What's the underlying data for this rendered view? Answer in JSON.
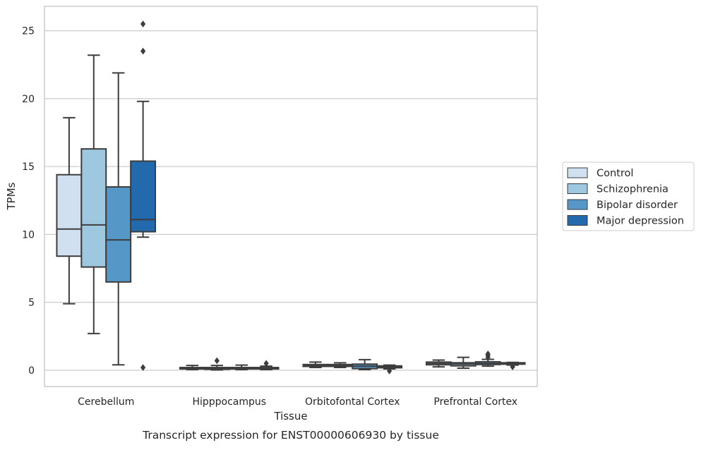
{
  "chart_data": {
    "type": "boxplot",
    "title": "",
    "caption": "Transcript expression for ENST00000606930 by tissue",
    "xlabel": "Tissue",
    "ylabel": "TPMs",
    "ylim": [
      -1.2,
      26.8
    ],
    "yticks": [
      0,
      5,
      10,
      15,
      20,
      25
    ],
    "grid": "horizontal",
    "legend_position": "right",
    "categories": [
      "Cerebellum",
      "Hipppocampus",
      "Orbitofontal Cortex",
      "Prefrontal Cortex"
    ],
    "series": [
      {
        "name": "Control",
        "color": "#d0e0f1",
        "boxes": [
          {
            "whislo": 4.9,
            "q1": 8.4,
            "med": 10.4,
            "q3": 14.4,
            "whishi": 18.6,
            "fliers": []
          },
          {
            "whislo": 0.05,
            "q1": 0.1,
            "med": 0.15,
            "q3": 0.2,
            "whishi": 0.35,
            "fliers": []
          },
          {
            "whislo": 0.2,
            "q1": 0.28,
            "med": 0.35,
            "q3": 0.42,
            "whishi": 0.6,
            "fliers": []
          },
          {
            "whislo": 0.25,
            "q1": 0.4,
            "med": 0.5,
            "q3": 0.6,
            "whishi": 0.75,
            "fliers": []
          }
        ]
      },
      {
        "name": "Schizophrenia",
        "color": "#9dc8e0",
        "boxes": [
          {
            "whislo": 2.7,
            "q1": 7.6,
            "med": 10.7,
            "q3": 16.3,
            "whishi": 23.2,
            "fliers": []
          },
          {
            "whislo": 0.02,
            "q1": 0.07,
            "med": 0.12,
            "q3": 0.2,
            "whishi": 0.35,
            "fliers": [
              0.7
            ]
          },
          {
            "whislo": 0.2,
            "q1": 0.28,
            "med": 0.35,
            "q3": 0.42,
            "whishi": 0.55,
            "fliers": []
          },
          {
            "whislo": 0.15,
            "q1": 0.32,
            "med": 0.45,
            "q3": 0.55,
            "whishi": 0.95,
            "fliers": []
          }
        ]
      },
      {
        "name": "Bipolar disorder",
        "color": "#5598c8",
        "boxes": [
          {
            "whislo": 0.4,
            "q1": 6.5,
            "med": 9.6,
            "q3": 13.5,
            "whishi": 21.9,
            "fliers": []
          },
          {
            "whislo": 0.05,
            "q1": 0.1,
            "med": 0.15,
            "q3": 0.2,
            "whishi": 0.38,
            "fliers": []
          },
          {
            "whislo": 0.05,
            "q1": 0.12,
            "med": 0.3,
            "q3": 0.45,
            "whishi": 0.78,
            "fliers": []
          },
          {
            "whislo": 0.3,
            "q1": 0.42,
            "med": 0.5,
            "q3": 0.62,
            "whishi": 0.8,
            "fliers": [
              1.1,
              1.2,
              0.95
            ]
          }
        ]
      },
      {
        "name": "Major depression",
        "color": "#2269ad",
        "boxes": [
          {
            "whislo": 9.8,
            "q1": 10.2,
            "med": 11.1,
            "q3": 15.4,
            "whishi": 19.8,
            "fliers": [
              0.2,
              23.5,
              25.5
            ]
          },
          {
            "whislo": 0.05,
            "q1": 0.1,
            "med": 0.15,
            "q3": 0.2,
            "whishi": 0.3,
            "fliers": [
              0.5
            ]
          },
          {
            "whislo": 0.1,
            "q1": 0.18,
            "med": 0.25,
            "q3": 0.32,
            "whishi": 0.38,
            "fliers": [
              -0.05
            ]
          },
          {
            "whislo": 0.38,
            "q1": 0.45,
            "med": 0.5,
            "q3": 0.55,
            "whishi": 0.58,
            "fliers": [
              0.25
            ]
          }
        ]
      }
    ]
  }
}
